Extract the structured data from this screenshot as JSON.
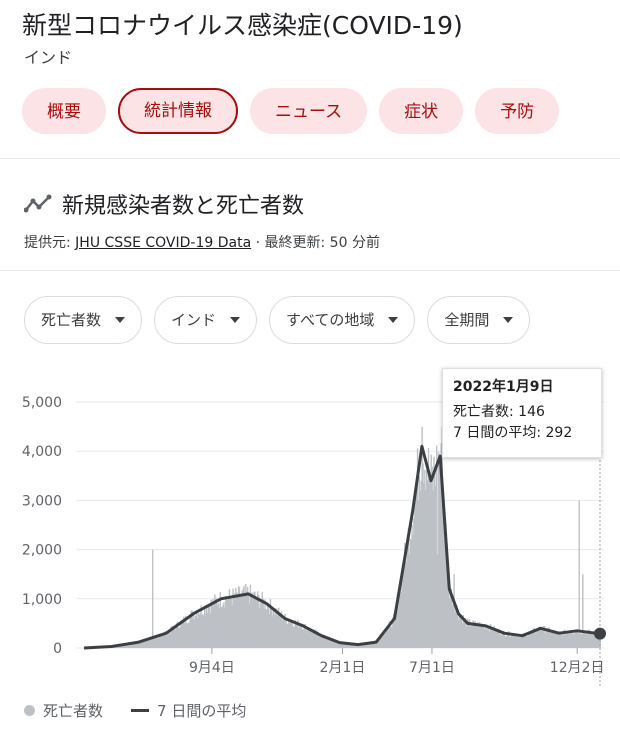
{
  "header": {
    "title": "新型コロナウイルス感染症(COVID-19)",
    "subtitle": "インド"
  },
  "tabs": [
    {
      "label": "概要"
    },
    {
      "label": "統計情報"
    },
    {
      "label": "ニュース"
    },
    {
      "label": "症状"
    },
    {
      "label": "予防"
    }
  ],
  "section": {
    "icon": "trend-line-icon",
    "title": "新規感染者数と死亡者数",
    "source_prefix": "提供元:",
    "source_link": "JHU CSSE COVID-19 Data",
    "updated": "· 最終更新: 50 分前"
  },
  "filters": [
    {
      "label": "死亡者数"
    },
    {
      "label": "インド"
    },
    {
      "label": "すべての地域"
    },
    {
      "label": "全期間"
    }
  ],
  "tooltip": {
    "date": "2022年1月9日",
    "deaths": "死亡者数: 146",
    "avg": "7 日間の平均: 292"
  },
  "legend": {
    "bars": "死亡者数",
    "line": "7 日間の平均"
  },
  "colors": {
    "accent": "#a50e0e",
    "chip_bg": "#fbe3e6",
    "bars": "#bdc1c6",
    "line": "#3c4043"
  },
  "chart_data": {
    "type": "bar",
    "yticks": [
      "5,000",
      "4,000",
      "3,000",
      "2,000",
      "1,000",
      "0"
    ],
    "ylim": [
      0,
      5000
    ],
    "xticks": [
      "9月4日",
      "2月1日",
      "7月1日",
      "12月2日"
    ],
    "series": [
      {
        "name": "死亡者数",
        "type": "bar"
      },
      {
        "name": "7 日間の平均",
        "type": "line",
        "points": [
          [
            0,
            0
          ],
          [
            30,
            30
          ],
          [
            60,
            120
          ],
          [
            90,
            300
          ],
          [
            120,
            700
          ],
          [
            150,
            1000
          ],
          [
            180,
            1100
          ],
          [
            200,
            900
          ],
          [
            220,
            600
          ],
          [
            240,
            450
          ],
          [
            260,
            250
          ],
          [
            280,
            110
          ],
          [
            300,
            70
          ],
          [
            320,
            120
          ],
          [
            340,
            600
          ],
          [
            360,
            2800
          ],
          [
            370,
            4100
          ],
          [
            380,
            3400
          ],
          [
            390,
            3900
          ],
          [
            400,
            1200
          ],
          [
            410,
            700
          ],
          [
            420,
            500
          ],
          [
            440,
            450
          ],
          [
            460,
            300
          ],
          [
            480,
            250
          ],
          [
            500,
            400
          ],
          [
            520,
            300
          ],
          [
            540,
            350
          ],
          [
            560,
            300
          ],
          [
            565,
            292
          ]
        ]
      }
    ]
  }
}
